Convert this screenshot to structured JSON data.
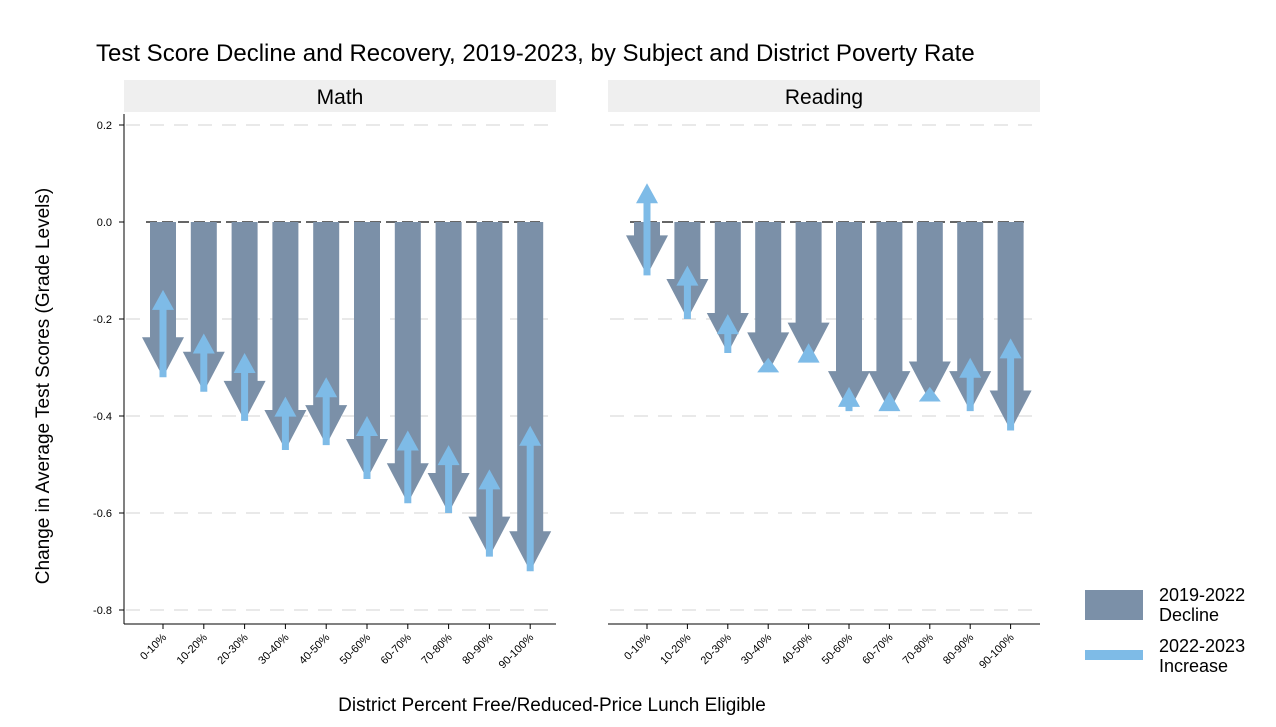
{
  "chart_data": {
    "type": "bar",
    "title": "Test Score Decline and Recovery, 2019-2023, by Subject and District Poverty Rate",
    "xlabel": "District Percent Free/Reduced-Price Lunch Eligible",
    "ylabel": "Change in Average Test Scores (Grade Levels)",
    "ylim": [
      -0.83,
      0.22
    ],
    "yticks": [
      "0.2",
      "0.0",
      "-0.2",
      "-0.4",
      "-0.6",
      "-0.8"
    ],
    "ytick_values": [
      0.2,
      0.0,
      -0.2,
      -0.4,
      -0.6,
      -0.8
    ],
    "categories": [
      "0-10%",
      "10-20%",
      "20-30%",
      "30-40%",
      "40-50%",
      "50-60%",
      "60-70%",
      "70-80%",
      "80-90%",
      "90-100%"
    ],
    "reference_line": 0.0,
    "grid": true,
    "legend_position": "right",
    "legend": [
      {
        "label_line1": "2019-2022",
        "label_line2": "Decline",
        "color": "#7b90a8"
      },
      {
        "label_line1": "2022-2023",
        "label_line2": "Increase",
        "color": "#7ebbe7"
      }
    ],
    "panels": [
      {
        "name": "Math",
        "decline_2019_2022": [
          -0.32,
          -0.35,
          -0.41,
          -0.47,
          -0.46,
          -0.53,
          -0.58,
          -0.6,
          -0.69,
          -0.72
        ],
        "level_2023": [
          -0.14,
          -0.23,
          -0.27,
          -0.36,
          -0.32,
          -0.4,
          -0.43,
          -0.46,
          -0.51,
          -0.42
        ]
      },
      {
        "name": "Reading",
        "decline_2019_2022": [
          -0.11,
          -0.2,
          -0.27,
          -0.31,
          -0.29,
          -0.39,
          -0.39,
          -0.37,
          -0.39,
          -0.43
        ],
        "level_2023": [
          0.08,
          -0.09,
          -0.19,
          -0.28,
          -0.25,
          -0.34,
          -0.35,
          -0.34,
          -0.28,
          -0.24
        ]
      }
    ]
  }
}
